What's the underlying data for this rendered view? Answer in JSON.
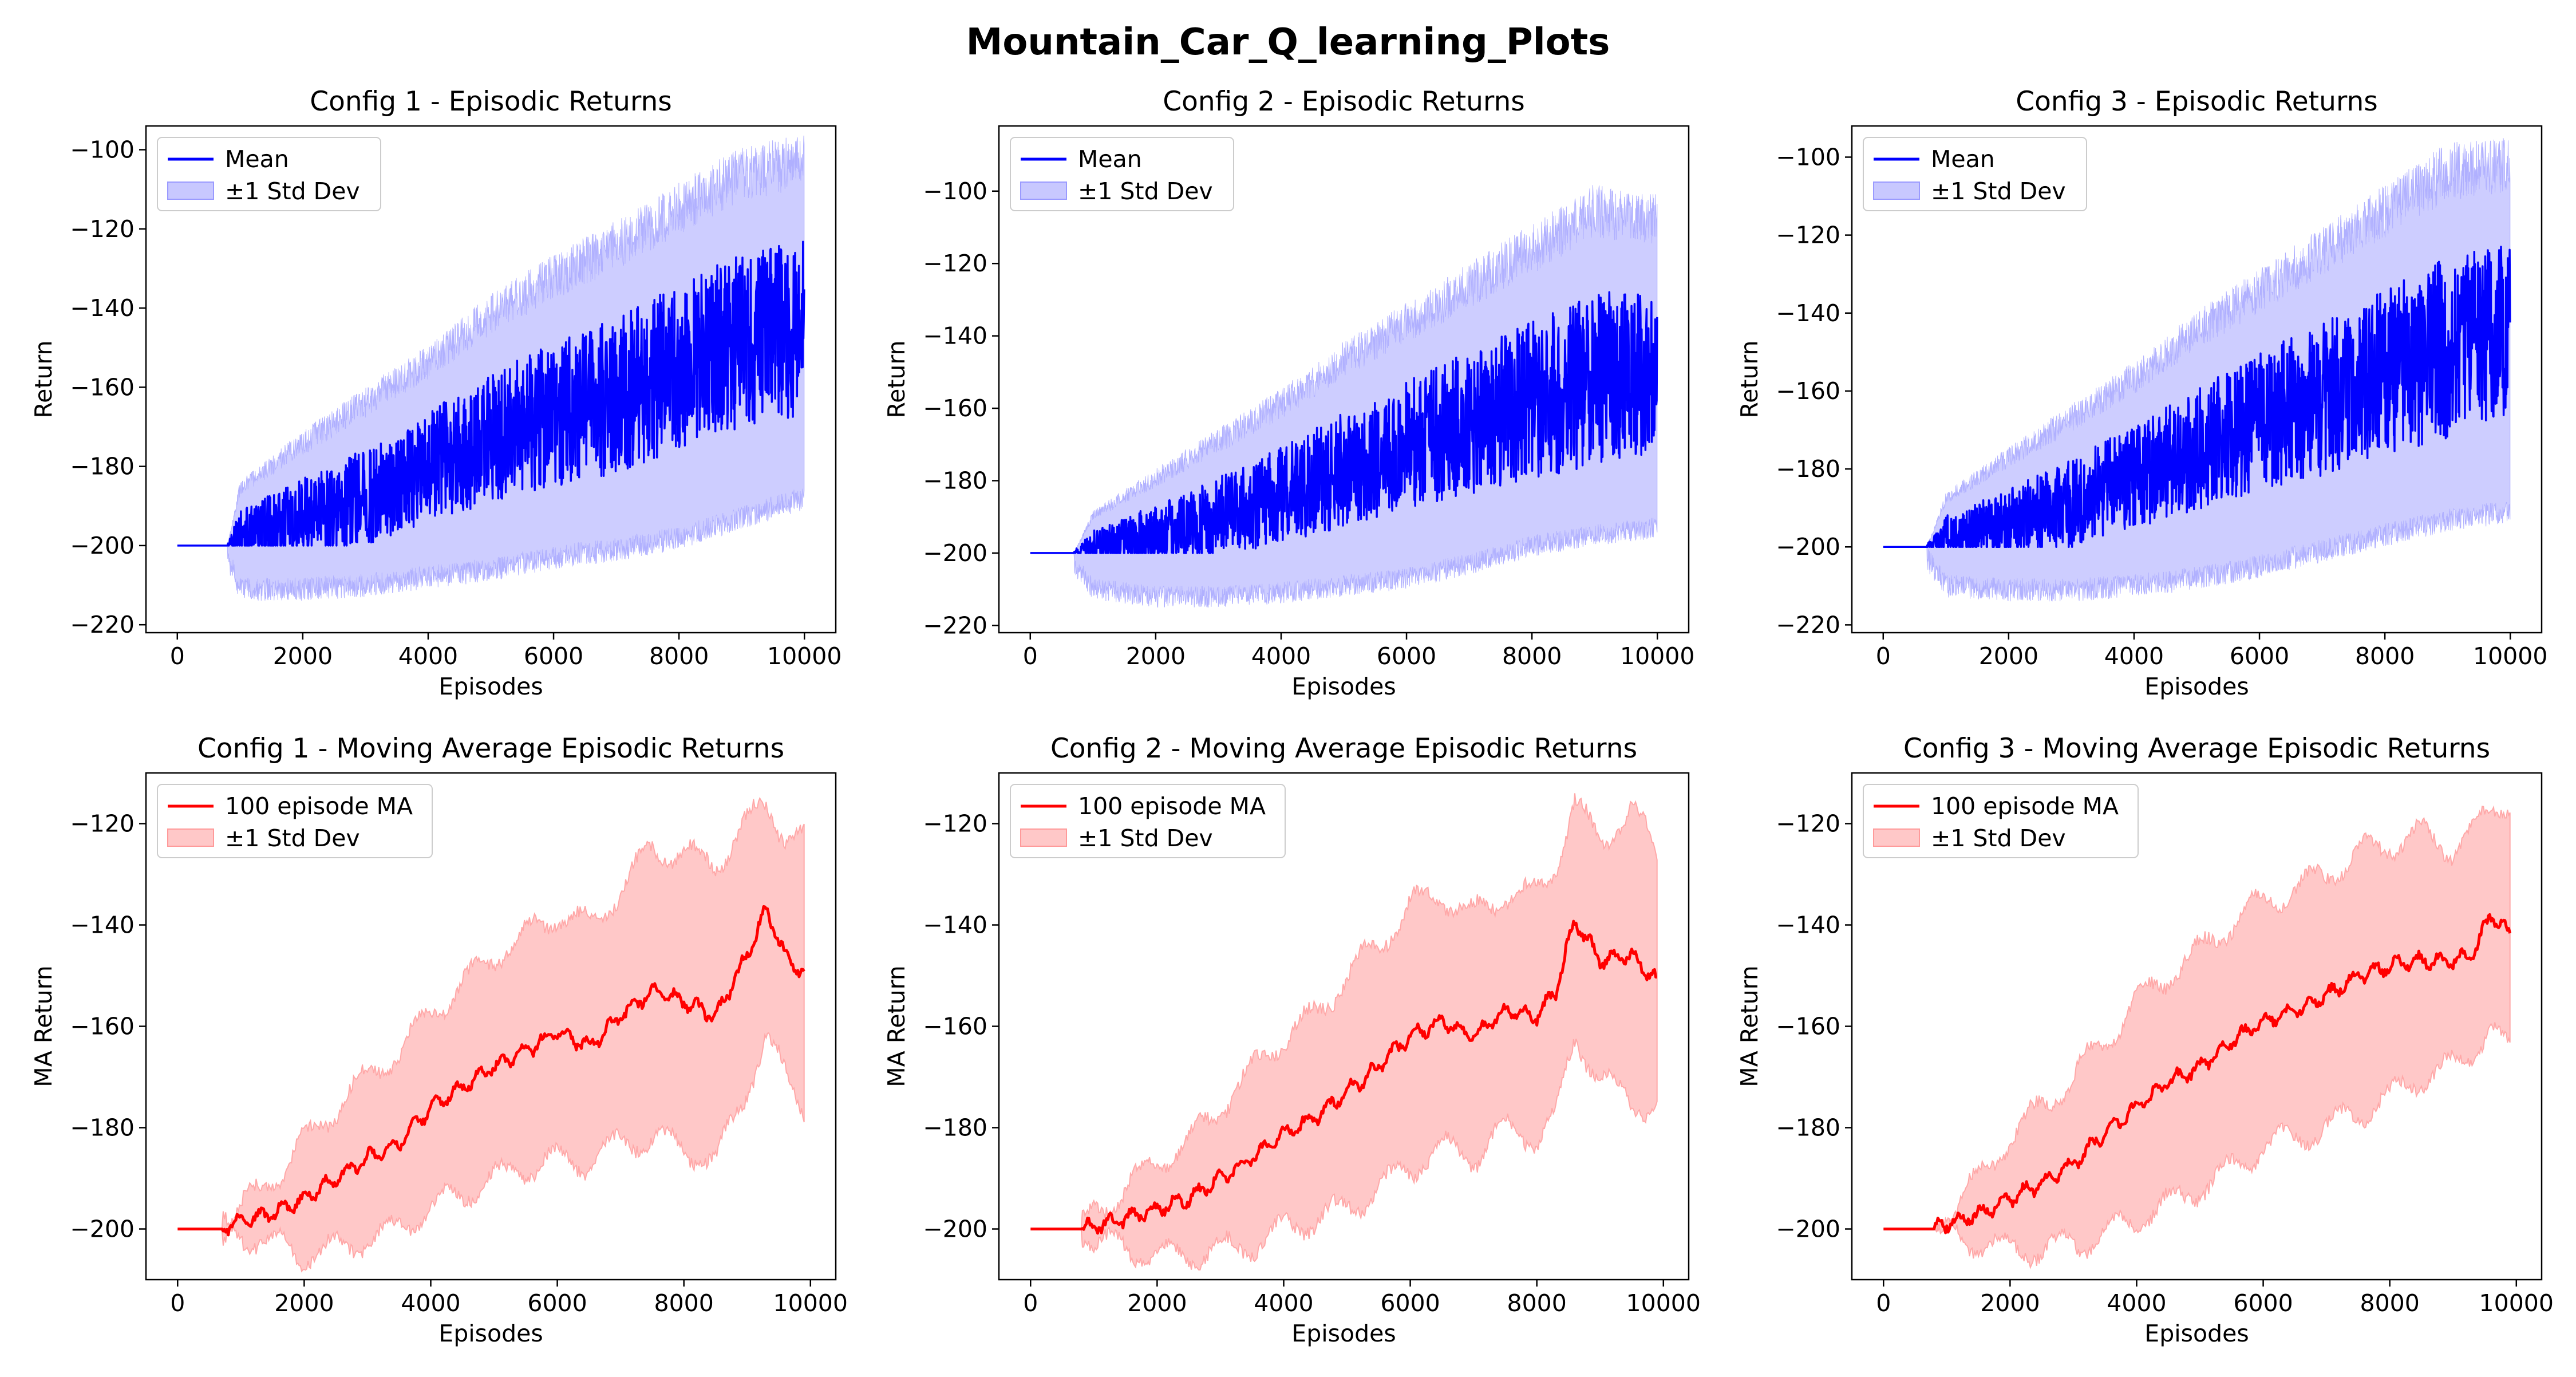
{
  "suptitle": "Mountain_Car_Q_learning_Plots",
  "colors": {
    "mean_line": "#0000ff",
    "mean_band": "#c8c8ff",
    "ma_line": "#ff0000",
    "ma_band": "#ffc8c8"
  },
  "chart_data": [
    {
      "type": "line",
      "title": "Config 1 - Episodic Returns",
      "xlabel": "Episodes",
      "ylabel": "Return",
      "xlim": [
        -500,
        10500
      ],
      "ylim": [
        -222,
        -94
      ],
      "xticks": [
        0,
        2000,
        4000,
        6000,
        8000,
        10000
      ],
      "yticks": [
        -220,
        -200,
        -180,
        -160,
        -140,
        -120,
        -100
      ],
      "legend": "upper-left",
      "grid": false,
      "kind": "raw",
      "series": [
        {
          "name": "Mean",
          "role": "line",
          "x": [
            0,
            800,
            1000,
            2000,
            3000,
            4000,
            5000,
            6000,
            7000,
            8000,
            9000,
            10000
          ],
          "y": [
            -200,
            -200,
            -197,
            -193,
            -188,
            -180,
            -173,
            -167,
            -162,
            -155,
            -148,
            -145
          ]
        },
        {
          "name": "±1 Std Dev",
          "role": "band",
          "x": [
            0,
            800,
            1000,
            2000,
            3000,
            4000,
            5000,
            6000,
            7000,
            8000,
            9000,
            10000
          ],
          "low": [
            -200,
            -200,
            -208,
            -208,
            -207,
            -205,
            -203,
            -200,
            -198,
            -195,
            -190,
            -185
          ],
          "high": [
            -200,
            -200,
            -186,
            -175,
            -165,
            -155,
            -143,
            -134,
            -126,
            -117,
            -108,
            -105
          ]
        }
      ]
    },
    {
      "type": "line",
      "title": "Config 2 - Episodic Returns",
      "xlabel": "Episodes",
      "ylabel": "Return",
      "xlim": [
        -500,
        10500
      ],
      "ylim": [
        -222,
        -82
      ],
      "xticks": [
        0,
        2000,
        4000,
        6000,
        8000,
        10000
      ],
      "yticks": [
        -220,
        -200,
        -180,
        -160,
        -140,
        -120,
        -100
      ],
      "legend": "upper-left",
      "grid": false,
      "kind": "raw",
      "series": [
        {
          "name": "Mean",
          "role": "line",
          "x": [
            0,
            700,
            1000,
            2000,
            3000,
            4000,
            5000,
            6000,
            7000,
            8000,
            9000,
            10000
          ],
          "y": [
            -200,
            -200,
            -198,
            -195,
            -190,
            -184,
            -177,
            -170,
            -164,
            -158,
            -152,
            -150
          ]
        },
        {
          "name": "±1 Std Dev",
          "role": "band",
          "x": [
            0,
            700,
            1000,
            2000,
            3000,
            4000,
            5000,
            6000,
            7000,
            8000,
            9000,
            10000
          ],
          "low": [
            -200,
            -200,
            -207,
            -209,
            -209,
            -208,
            -206,
            -204,
            -200,
            -195,
            -192,
            -190
          ],
          "high": [
            -200,
            -200,
            -190,
            -180,
            -170,
            -160,
            -148,
            -138,
            -128,
            -118,
            -108,
            -110
          ]
        }
      ]
    },
    {
      "type": "line",
      "title": "Config 3 - Episodic Returns",
      "xlabel": "Episodes",
      "ylabel": "Return",
      "xlim": [
        -500,
        10500
      ],
      "ylim": [
        -222,
        -92
      ],
      "xticks": [
        0,
        2000,
        4000,
        6000,
        8000,
        10000
      ],
      "yticks": [
        -220,
        -200,
        -180,
        -160,
        -140,
        -120,
        -100
      ],
      "legend": "upper-left",
      "grid": false,
      "kind": "raw",
      "series": [
        {
          "name": "Mean",
          "role": "line",
          "x": [
            0,
            700,
            1000,
            2000,
            3000,
            4000,
            5000,
            6000,
            7000,
            8000,
            9000,
            10000
          ],
          "y": [
            -200,
            -200,
            -197,
            -194,
            -189,
            -182,
            -175,
            -168,
            -162,
            -155,
            -149,
            -144
          ]
        },
        {
          "name": "±1 Std Dev",
          "role": "band",
          "x": [
            0,
            700,
            1000,
            2000,
            3000,
            4000,
            5000,
            6000,
            7000,
            8000,
            9000,
            10000
          ],
          "low": [
            -200,
            -200,
            -207,
            -208,
            -208,
            -207,
            -205,
            -202,
            -198,
            -194,
            -190,
            -188
          ],
          "high": [
            -200,
            -200,
            -188,
            -178,
            -168,
            -158,
            -146,
            -136,
            -126,
            -116,
            -106,
            -104
          ]
        }
      ]
    },
    {
      "type": "line",
      "title": "Config 1 - Moving Average Episodic Returns",
      "xlabel": "Episodes",
      "ylabel": "MA Return",
      "xlim": [
        -500,
        10400
      ],
      "ylim": [
        -210,
        -110
      ],
      "xticks": [
        0,
        2000,
        4000,
        6000,
        8000,
        10000
      ],
      "yticks": [
        -200,
        -180,
        -160,
        -140,
        -120
      ],
      "legend": "upper-left",
      "grid": false,
      "kind": "ma",
      "series": [
        {
          "name": "100 episode MA",
          "role": "line",
          "x": [
            0,
            700,
            1000,
            1500,
            2000,
            2500,
            3000,
            3500,
            4000,
            4500,
            5000,
            5500,
            6000,
            6500,
            7000,
            7500,
            8000,
            8500,
            9000,
            9300,
            9600,
            9900
          ],
          "y": [
            -200,
            -200,
            -198.5,
            -197,
            -194,
            -190,
            -186,
            -183,
            -176,
            -172,
            -168,
            -165,
            -161,
            -164,
            -158,
            -153,
            -155,
            -158,
            -146,
            -137,
            -146,
            -150
          ]
        },
        {
          "name": "±1 Std Dev",
          "role": "band",
          "x": [
            0,
            700,
            1000,
            1500,
            2000,
            2500,
            3000,
            3500,
            4000,
            4500,
            5000,
            5500,
            6000,
            6500,
            7000,
            7500,
            8000,
            8500,
            9000,
            9300,
            9600,
            9900
          ],
          "low": [
            -200,
            -200,
            -201,
            -203,
            -205,
            -204,
            -202,
            -200,
            -196,
            -193,
            -190,
            -188,
            -186,
            -187,
            -183,
            -182,
            -184,
            -187,
            -172,
            -162,
            -170,
            -176
          ],
          "high": [
            -200,
            -200,
            -196,
            -190,
            -183,
            -176,
            -170,
            -165,
            -157,
            -152,
            -146,
            -142,
            -138,
            -140,
            -133,
            -125,
            -126,
            -128,
            -120,
            -116,
            -122,
            -123
          ]
        }
      ]
    },
    {
      "type": "line",
      "title": "Config 2 - Moving Average Episodic Returns",
      "xlabel": "Episodes",
      "ylabel": "MA Return",
      "xlim": [
        -500,
        10400
      ],
      "ylim": [
        -210,
        -110
      ],
      "xticks": [
        0,
        2000,
        4000,
        6000,
        8000,
        10000
      ],
      "yticks": [
        -200,
        -180,
        -160,
        -140,
        -120
      ],
      "legend": "upper-left",
      "grid": false,
      "kind": "ma",
      "series": [
        {
          "name": "100 episode MA",
          "role": "line",
          "x": [
            0,
            800,
            1000,
            1500,
            2000,
            2500,
            3000,
            3500,
            4000,
            4500,
            5000,
            5500,
            6000,
            6500,
            7000,
            7500,
            8000,
            8300,
            8600,
            9000,
            9500,
            9900
          ],
          "y": [
            -200,
            -200,
            -199.5,
            -198,
            -196,
            -194,
            -190,
            -186,
            -181,
            -178,
            -173,
            -168,
            -162,
            -159,
            -162,
            -157,
            -158,
            -153,
            -139,
            -147,
            -146,
            -151
          ]
        },
        {
          "name": "±1 Std Dev",
          "role": "band",
          "x": [
            0,
            800,
            1000,
            1500,
            2000,
            2500,
            3000,
            3500,
            4000,
            4500,
            5000,
            5500,
            6000,
            6500,
            7000,
            7500,
            8000,
            8300,
            8600,
            9000,
            9500,
            9900
          ],
          "low": [
            -200,
            -200,
            -202,
            -204,
            -205,
            -205,
            -204,
            -203,
            -200,
            -198,
            -196,
            -192,
            -188,
            -184,
            -186,
            -180,
            -182,
            -178,
            -162,
            -170,
            -175,
            -176
          ]
        }
      ]
    },
    {
      "type": "line",
      "title": "Config 3 - Moving Average Episodic Returns",
      "xlabel": "Episodes",
      "ylabel": "MA Return",
      "xlim": [
        -500,
        10400
      ],
      "ylim": [
        -210,
        -110
      ],
      "xticks": [
        0,
        2000,
        4000,
        6000,
        8000,
        10000
      ],
      "yticks": [
        -200,
        -180,
        -160,
        -140,
        -120
      ],
      "legend": "upper-left",
      "grid": false,
      "kind": "ma",
      "series": [
        {
          "name": "100 episode MA",
          "role": "line",
          "x": [
            0,
            800,
            1000,
            1500,
            2000,
            2500,
            3000,
            3500,
            4000,
            4500,
            5000,
            5500,
            6000,
            6500,
            7000,
            7500,
            8000,
            8500,
            9000,
            9300,
            9600,
            9900
          ],
          "y": [
            -200,
            -200,
            -199,
            -197,
            -194,
            -191,
            -187,
            -181,
            -176,
            -171,
            -168,
            -163,
            -159,
            -157,
            -154,
            -150,
            -148,
            -147,
            -147,
            -146,
            -138,
            -142
          ]
        },
        {
          "name": "±1 Std Dev",
          "role": "band",
          "x": [
            0,
            800,
            1000,
            1500,
            2000,
            2500,
            3000,
            3500,
            4000,
            4500,
            5000,
            5500,
            6000,
            6500,
            7000,
            7500,
            8000,
            8500,
            9000,
            9300,
            9600,
            9900
          ],
          "low": [
            -200,
            -200,
            -201,
            -203,
            -204,
            -204,
            -203,
            -201,
            -198,
            -195,
            -192,
            -188,
            -184,
            -182,
            -180,
            -177,
            -174,
            -170,
            -168,
            -165,
            -160,
            -166
          ],
          "high": [
            -200,
            -200,
            -197,
            -190,
            -182,
            -176,
            -170,
            -163,
            -155,
            -150,
            -145,
            -140,
            -135,
            -133,
            -130,
            -126,
            -124,
            -122,
            -125,
            -122,
            -117,
            -115
          ]
        }
      ]
    }
  ],
  "legends": [
    {
      "line": "Mean",
      "band": "±1 Std Dev"
    },
    {
      "line": "Mean",
      "band": "±1 Std Dev"
    },
    {
      "line": "Mean",
      "band": "±1 Std Dev"
    },
    {
      "line": "100 episode MA",
      "band": "±1 Std Dev"
    },
    {
      "line": "100 episode MA",
      "band": "±1 Std Dev"
    },
    {
      "line": "100 episode MA",
      "band": "±1 Std Dev"
    }
  ]
}
